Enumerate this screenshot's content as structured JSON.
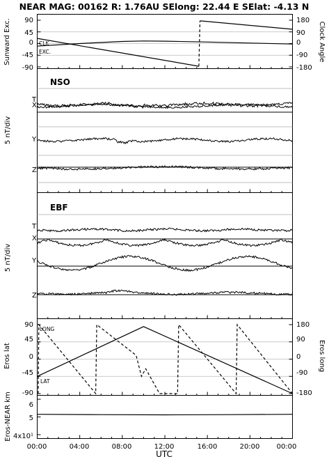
{
  "header": {
    "title": "NEAR MAG: 00162  R: 1.76AU  SElong:   22.44 E  SElat:   -4.13 N"
  },
  "chart_data": [
    {
      "panel": "sunward",
      "type": "line",
      "ylabel_left": "Sunward Exc.",
      "ylabel_right": "Clock Angle",
      "yticks_left": [
        "90",
        "45",
        "0",
        "-45",
        "-90"
      ],
      "yticks_right": [
        "180",
        "90",
        "0",
        "-90",
        "-180"
      ],
      "ylim_left": [
        -90,
        90
      ],
      "ylim_right": [
        -180,
        180
      ],
      "annotations": [
        "CLK",
        "EXC."
      ],
      "series": [
        {
          "name": "EXC.",
          "style": "solid",
          "x": [
            0,
            4,
            8,
            10,
            12,
            16,
            20,
            24
          ],
          "y": [
            -10,
            0,
            8,
            10,
            9,
            6,
            2,
            -2
          ]
        },
        {
          "name": "CLK",
          "style": "solid",
          "axis": "right",
          "x": [
            0,
            15.2
          ],
          "y": [
            40,
            -175
          ]
        },
        {
          "name": "CLK-wrap",
          "style": "dashed",
          "axis": "right",
          "x": [
            15.2,
            15.3
          ],
          "y": [
            -175,
            175
          ]
        },
        {
          "name": "CLK-2",
          "style": "solid",
          "axis": "right",
          "x": [
            15.3,
            24
          ],
          "y": [
            175,
            110
          ]
        }
      ]
    },
    {
      "panel": "NSO",
      "type": "line",
      "panel_title": "NSO",
      "ylabel": "5 nT/div",
      "trace_labels": [
        "T",
        "X",
        "Y",
        "Z"
      ]
    },
    {
      "panel": "EBF",
      "type": "line",
      "panel_title": "EBF",
      "ylabel": "5 nT/div",
      "trace_labels": [
        "T",
        "X",
        "Y",
        "Z"
      ]
    },
    {
      "panel": "eros",
      "type": "line",
      "ylabel_left": "Eros lat",
      "ylabel_right": "Eros long",
      "yticks_left": [
        "90",
        "45",
        "0",
        "-45",
        "-90"
      ],
      "yticks_right": [
        "180",
        "90",
        "0",
        "-90",
        "-180"
      ],
      "ylim_left": [
        -90,
        90
      ],
      "ylim_right": [
        -180,
        180
      ],
      "annotations": [
        "LONG",
        "LAT"
      ],
      "series": [
        {
          "name": "LAT",
          "style": "solid",
          "x": [
            0,
            10,
            24
          ],
          "y": [
            -45,
            85,
            -90
          ]
        },
        {
          "name": "LONG",
          "style": "dashed",
          "axis": "right",
          "x": [
            0.1,
            0.15,
            5.5,
            5.6,
            9.3,
            9.8,
            10.2,
            11.5,
            13.2,
            13.3,
            18.7,
            18.8,
            24
          ],
          "y": [
            -180,
            180,
            -180,
            180,
            20,
            -90,
            -50,
            -180,
            -180,
            180,
            -180,
            180,
            -180
          ]
        }
      ]
    },
    {
      "panel": "distance",
      "type": "line",
      "ylabel": "Eros-NEAR km",
      "yticks": [
        "6",
        "5",
        "4x10¹"
      ],
      "ylim": [
        38,
        62
      ],
      "series": [
        {
          "name": "distance",
          "style": "solid",
          "x": [
            0,
            6,
            12,
            18,
            24
          ],
          "y": [
            51.5,
            51.3,
            51.2,
            51.3,
            51.5
          ]
        }
      ]
    }
  ],
  "xaxis": {
    "label": "UTC",
    "ticks": [
      "00:00",
      "04:00",
      "08:00",
      "12:00",
      "16:00",
      "20:00",
      "00:00"
    ],
    "range": [
      0,
      24
    ]
  }
}
